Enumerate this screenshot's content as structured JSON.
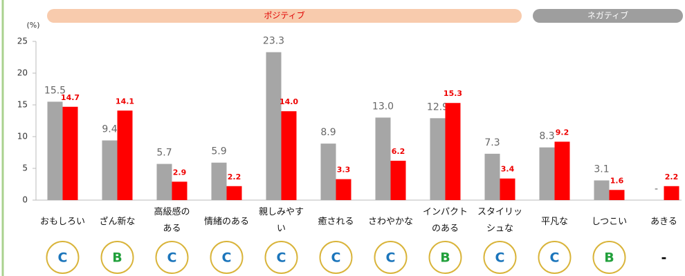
{
  "chart_data": {
    "type": "bar",
    "y_unit": "(%)",
    "categories": [
      "おもしろい",
      "ざん新な",
      "高級感の\nある",
      "情緒のある",
      "親しみやす\nい",
      "癒される",
      "さわやかな",
      "インパクト\nのある",
      "スタイリッ\nシュな",
      "平凡な",
      "しつこい",
      "あきる"
    ],
    "series": [
      {
        "color": "#a6a6a6",
        "values": [
          15.5,
          9.4,
          5.7,
          5.9,
          23.3,
          8.9,
          13.0,
          12.9,
          7.3,
          8.3,
          3.1,
          null
        ],
        "value_labels": [
          "15.5",
          "9.4",
          "5.7",
          "5.9",
          "23.3",
          "8.9",
          "13.0",
          "12.9",
          "7.3",
          "8.3",
          "3.1",
          "-"
        ]
      },
      {
        "color": "#ff0000",
        "values": [
          14.7,
          14.1,
          2.9,
          2.2,
          14.0,
          3.3,
          6.2,
          15.3,
          3.4,
          9.2,
          1.6,
          2.2
        ],
        "value_labels": [
          "14.7",
          "14.1",
          "2.9",
          "2.2",
          "14.0",
          "3.3",
          "6.2",
          "15.3",
          "3.4",
          "9.2",
          "1.6",
          "2.2"
        ]
      }
    ],
    "ylim": [
      0,
      25
    ],
    "yticks": [
      0,
      5,
      10,
      15,
      20,
      25
    ],
    "groups": [
      {
        "label": "ポジティブ",
        "count": 9,
        "color": "#f8cbad",
        "text_color": "#e00000"
      },
      {
        "label": "ネガティブ",
        "count": 3,
        "color": "#9e9e9e",
        "text_color": "#ffffff"
      }
    ],
    "grades": [
      {
        "label": "C",
        "color": "#1b75bb",
        "circle": true
      },
      {
        "label": "B",
        "color": "#22a03c",
        "circle": true
      },
      {
        "label": "C",
        "color": "#1b75bb",
        "circle": true
      },
      {
        "label": "C",
        "color": "#1b75bb",
        "circle": true
      },
      {
        "label": "C",
        "color": "#1b75bb",
        "circle": true
      },
      {
        "label": "C",
        "color": "#1b75bb",
        "circle": true
      },
      {
        "label": "C",
        "color": "#1b75bb",
        "circle": true
      },
      {
        "label": "B",
        "color": "#22a03c",
        "circle": true
      },
      {
        "label": "C",
        "color": "#1b75bb",
        "circle": true
      },
      {
        "label": "C",
        "color": "#1b75bb",
        "circle": true
      },
      {
        "label": "B",
        "color": "#22a03c",
        "circle": true
      },
      {
        "label": "-",
        "color": "#000000",
        "circle": false
      }
    ]
  }
}
